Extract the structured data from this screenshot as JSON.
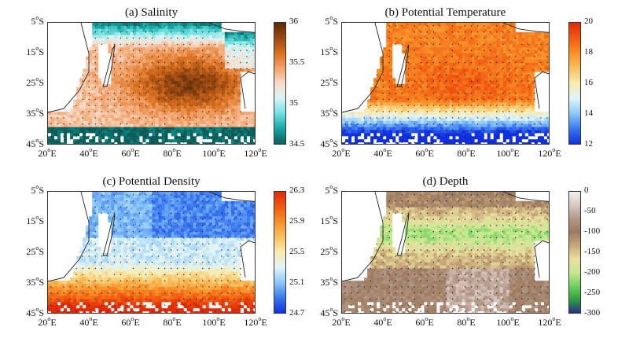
{
  "chart_data": [
    {
      "type": "heatmap",
      "title": "(a) Salinity",
      "x_ticks": [
        "20",
        "40",
        "60",
        "80",
        "100",
        "120"
      ],
      "x_unit": "E",
      "y_ticks": [
        "5",
        "15",
        "25",
        "35",
        "45"
      ],
      "y_unit": "S",
      "colorbar_ticks": [
        "36",
        "35.5",
        "35",
        "34.5"
      ],
      "colorbar_range": [
        34.5,
        36
      ],
      "colormap": [
        "#0b5e5a",
        "#14a7a4",
        "#6fe0e0",
        "#d9f5f5",
        "#f7dccb",
        "#f3a36b",
        "#d9701f",
        "#9c4a12",
        "#5a2a08"
      ],
      "field_description_values": {
        "north": 35.1,
        "center": 35.8,
        "south": 34.8
      }
    },
    {
      "type": "heatmap",
      "title": "(b) Potential Temperature",
      "x_ticks": [
        "20",
        "40",
        "60",
        "80",
        "100",
        "120"
      ],
      "x_unit": "E",
      "y_ticks": [
        "5",
        "15",
        "25",
        "35",
        "45"
      ],
      "y_unit": "S",
      "colorbar_ticks": [
        "20",
        "18",
        "16",
        "14",
        "12"
      ],
      "colorbar_range": [
        12,
        20
      ],
      "colormap": [
        "#1030e0",
        "#3a78f0",
        "#8cc8f8",
        "#e0f4f8",
        "#f8ecb0",
        "#f8c060",
        "#f89028",
        "#f05a10",
        "#e02a08"
      ],
      "field_description_values": {
        "north": 18.2,
        "center": 18.5,
        "south": 13.0
      }
    },
    {
      "type": "heatmap",
      "title": "(c) Potential Density",
      "x_ticks": [
        "20",
        "40",
        "60",
        "80",
        "100",
        "120"
      ],
      "x_unit": "E",
      "y_ticks": [
        "5",
        "15",
        "25",
        "35",
        "45"
      ],
      "y_unit": "S",
      "colorbar_ticks": [
        "26.3",
        "25.9",
        "25.5",
        "25.1",
        "24.7"
      ],
      "colorbar_range": [
        24.7,
        26.3
      ],
      "colormap": [
        "#1030e0",
        "#3a78f0",
        "#8cc8f8",
        "#e0f4f8",
        "#f8ecb0",
        "#f8c060",
        "#f89028",
        "#f05a10",
        "#e02a08"
      ],
      "field_description_values": {
        "north": 25.2,
        "center": 25.6,
        "south": 26.2
      }
    },
    {
      "type": "heatmap",
      "title": "(d) Depth",
      "x_ticks": [
        "20",
        "40",
        "60",
        "80",
        "100",
        "120"
      ],
      "x_unit": "E",
      "y_ticks": [
        "5",
        "15",
        "25",
        "35",
        "45"
      ],
      "y_unit": "S",
      "colorbar_ticks": [
        "0",
        "-50",
        "-100",
        "-150",
        "-200",
        "-250",
        "-300"
      ],
      "colorbar_range": [
        -300,
        0
      ],
      "colormap": [
        "#2a2f8a",
        "#30a040",
        "#70d060",
        "#c8e890",
        "#e8e0a0",
        "#c8a878",
        "#9c7a60",
        "#b49888",
        "#d8c8c0",
        "#f4f0ee"
      ],
      "field_description_values": {
        "north": -110,
        "center": -200,
        "south": -120
      }
    }
  ]
}
